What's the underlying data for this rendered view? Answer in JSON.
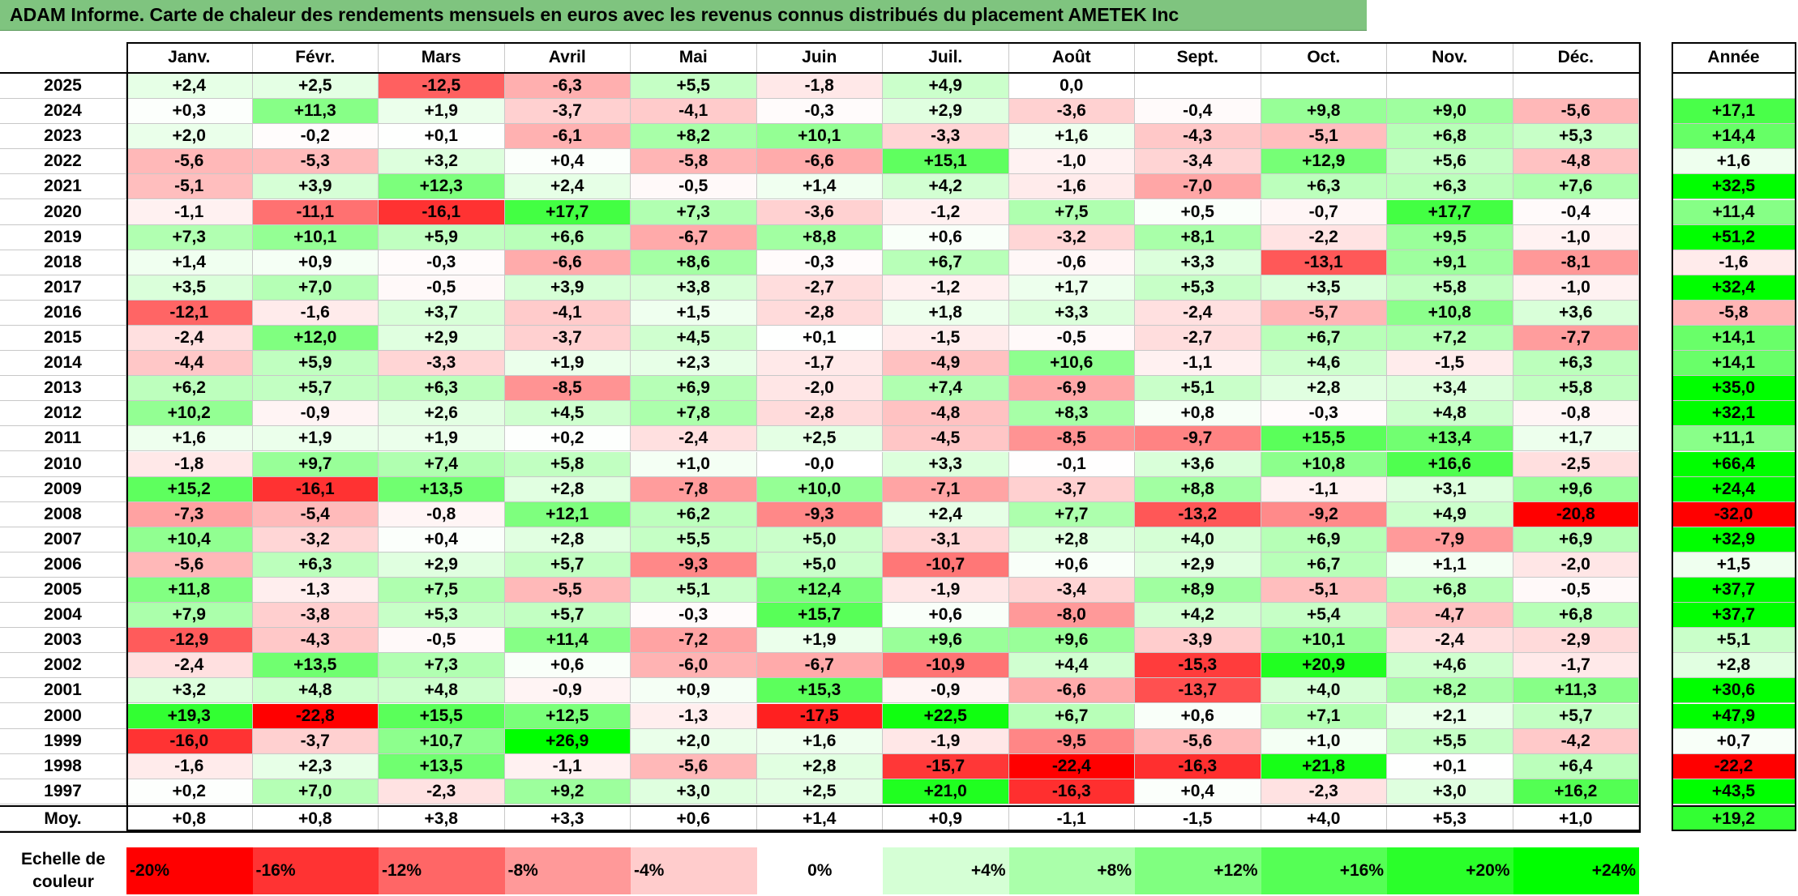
{
  "title": "ADAM Informe. Carte de chaleur des rendements mensuels en euros avec les revenus connus distribués du placement AMETEK Inc",
  "months": [
    "Janv.",
    "Févr.",
    "Mars",
    "Avril",
    "Mai",
    "Juin",
    "Juil.",
    "Août",
    "Sept.",
    "Oct.",
    "Nov.",
    "Déc."
  ],
  "annual_header": "Année",
  "avg_label": "Moy.",
  "scale_label": "Echelle de couleur",
  "scale": [
    "-20%",
    "-16%",
    "-12%",
    "-8%",
    "-4%",
    "0%",
    "+4%",
    "+8%",
    "+12%",
    "+16%",
    "+20%",
    "+24%"
  ],
  "colors": {
    "strong_negative": "#ff0000",
    "neutral": "#ffffff",
    "strong_positive": "#00ff00",
    "title_bar": "#7fc47f"
  },
  "chart_data": {
    "type": "heatmap",
    "title": "ADAM Informe. Carte de chaleur des rendements mensuels en euros avec les revenus connus distribués du placement AMETEK Inc",
    "x": [
      "Janv.",
      "Févr.",
      "Mars",
      "Avril",
      "Mai",
      "Juin",
      "Juil.",
      "Août",
      "Sept.",
      "Oct.",
      "Nov.",
      "Déc."
    ],
    "rows": [
      {
        "year": "2025",
        "values": [
          "+2,4",
          "+2,5",
          "-12,5",
          "-6,3",
          "+5,5",
          "-1,8",
          "+4,9",
          "0,0",
          "",
          "",
          "",
          ""
        ],
        "annual": ""
      },
      {
        "year": "2024",
        "values": [
          "+0,3",
          "+11,3",
          "+1,9",
          "-3,7",
          "-4,1",
          "-0,3",
          "+2,9",
          "-3,6",
          "-0,4",
          "+9,8",
          "+9,0",
          "-5,6"
        ],
        "annual": "+17,1"
      },
      {
        "year": "2023",
        "values": [
          "+2,0",
          "-0,2",
          "+0,1",
          "-6,1",
          "+8,2",
          "+10,1",
          "-3,3",
          "+1,6",
          "-4,3",
          "-5,1",
          "+6,8",
          "+5,3"
        ],
        "annual": "+14,4"
      },
      {
        "year": "2022",
        "values": [
          "-5,6",
          "-5,3",
          "+3,2",
          "+0,4",
          "-5,8",
          "-6,6",
          "+15,1",
          "-1,0",
          "-3,4",
          "+12,9",
          "+5,6",
          "-4,8"
        ],
        "annual": "+1,6"
      },
      {
        "year": "2021",
        "values": [
          "-5,1",
          "+3,9",
          "+12,3",
          "+2,4",
          "-0,5",
          "+1,4",
          "+4,2",
          "-1,6",
          "-7,0",
          "+6,3",
          "+6,3",
          "+7,6"
        ],
        "annual": "+32,5"
      },
      {
        "year": "2020",
        "values": [
          "-1,1",
          "-11,1",
          "-16,1",
          "+17,7",
          "+7,3",
          "-3,6",
          "-1,2",
          "+7,5",
          "+0,5",
          "-0,7",
          "+17,7",
          "-0,4"
        ],
        "annual": "+11,4"
      },
      {
        "year": "2019",
        "values": [
          "+7,3",
          "+10,1",
          "+5,9",
          "+6,6",
          "-6,7",
          "+8,8",
          "+0,6",
          "-3,2",
          "+8,1",
          "-2,2",
          "+9,5",
          "-1,0"
        ],
        "annual": "+51,2"
      },
      {
        "year": "2018",
        "values": [
          "+1,4",
          "+0,9",
          "-0,3",
          "-6,6",
          "+8,6",
          "-0,3",
          "+6,7",
          "-0,6",
          "+3,3",
          "-13,1",
          "+9,1",
          "-8,1"
        ],
        "annual": "-1,6"
      },
      {
        "year": "2017",
        "values": [
          "+3,5",
          "+7,0",
          "-0,5",
          "+3,9",
          "+3,8",
          "-2,7",
          "-1,2",
          "+1,7",
          "+5,3",
          "+3,5",
          "+5,8",
          "-1,0"
        ],
        "annual": "+32,4"
      },
      {
        "year": "2016",
        "values": [
          "-12,1",
          "-1,6",
          "+3,7",
          "-4,1",
          "+1,5",
          "-2,8",
          "+1,8",
          "+3,3",
          "-2,4",
          "-5,7",
          "+10,8",
          "+3,6"
        ],
        "annual": "-5,8"
      },
      {
        "year": "2015",
        "values": [
          "-2,4",
          "+12,0",
          "+2,9",
          "-3,7",
          "+4,5",
          "+0,1",
          "-1,5",
          "-0,5",
          "-2,7",
          "+6,7",
          "+7,2",
          "-7,7"
        ],
        "annual": "+14,1"
      },
      {
        "year": "2014",
        "values": [
          "-4,4",
          "+5,9",
          "-3,3",
          "+1,9",
          "+2,3",
          "-1,7",
          "-4,9",
          "+10,6",
          "-1,1",
          "+4,6",
          "-1,5",
          "+6,3"
        ],
        "annual": "+14,1"
      },
      {
        "year": "2013",
        "values": [
          "+6,2",
          "+5,7",
          "+6,3",
          "-8,5",
          "+6,9",
          "-2,0",
          "+7,4",
          "-6,9",
          "+5,1",
          "+2,8",
          "+3,4",
          "+5,8"
        ],
        "annual": "+35,0"
      },
      {
        "year": "2012",
        "values": [
          "+10,2",
          "-0,9",
          "+2,6",
          "+4,5",
          "+7,8",
          "-2,8",
          "-4,8",
          "+8,3",
          "+0,8",
          "-0,3",
          "+4,8",
          "-0,8"
        ],
        "annual": "+32,1"
      },
      {
        "year": "2011",
        "values": [
          "+1,6",
          "+1,9",
          "+1,9",
          "+0,2",
          "-2,4",
          "+2,5",
          "-4,5",
          "-8,5",
          "-9,7",
          "+15,5",
          "+13,4",
          "+1,7"
        ],
        "annual": "+11,1"
      },
      {
        "year": "2010",
        "values": [
          "-1,8",
          "+9,7",
          "+7,4",
          "+5,8",
          "+1,0",
          "-0,0",
          "+3,3",
          "-0,1",
          "+3,6",
          "+10,8",
          "+16,6",
          "-2,5"
        ],
        "annual": "+66,4"
      },
      {
        "year": "2009",
        "values": [
          "+15,2",
          "-16,1",
          "+13,5",
          "+2,8",
          "-7,8",
          "+10,0",
          "-7,1",
          "-3,7",
          "+8,8",
          "-1,1",
          "+3,1",
          "+9,6"
        ],
        "annual": "+24,4"
      },
      {
        "year": "2008",
        "values": [
          "-7,3",
          "-5,4",
          "-0,8",
          "+12,1",
          "+6,2",
          "-9,3",
          "+2,4",
          "+7,7",
          "-13,2",
          "-9,2",
          "+4,9",
          "-20,8"
        ],
        "annual": "-32,0"
      },
      {
        "year": "2007",
        "values": [
          "+10,4",
          "-3,2",
          "+0,4",
          "+2,8",
          "+5,5",
          "+5,0",
          "-3,1",
          "+2,8",
          "+4,0",
          "+6,9",
          "-7,9",
          "+6,9"
        ],
        "annual": "+32,9"
      },
      {
        "year": "2006",
        "values": [
          "-5,6",
          "+6,3",
          "+2,9",
          "+5,7",
          "-9,3",
          "+5,0",
          "-10,7",
          "+0,6",
          "+2,9",
          "+6,7",
          "+1,1",
          "-2,0"
        ],
        "annual": "+1,5"
      },
      {
        "year": "2005",
        "values": [
          "+11,8",
          "-1,3",
          "+7,5",
          "-5,5",
          "+5,1",
          "+12,4",
          "-1,9",
          "-3,4",
          "+8,9",
          "-5,1",
          "+6,8",
          "-0,5"
        ],
        "annual": "+37,7"
      },
      {
        "year": "2004",
        "values": [
          "+7,9",
          "-3,8",
          "+5,3",
          "+5,7",
          "-0,3",
          "+15,7",
          "+0,6",
          "-8,0",
          "+4,2",
          "+5,4",
          "-4,7",
          "+6,8"
        ],
        "annual": "+37,7"
      },
      {
        "year": "2003",
        "values": [
          "-12,9",
          "-4,3",
          "-0,5",
          "+11,4",
          "-7,2",
          "+1,9",
          "+9,6",
          "+9,6",
          "-3,9",
          "+10,1",
          "-2,4",
          "-2,9"
        ],
        "annual": "+5,1"
      },
      {
        "year": "2002",
        "values": [
          "-2,4",
          "+13,5",
          "+7,3",
          "+0,6",
          "-6,0",
          "-6,7",
          "-10,9",
          "+4,4",
          "-15,3",
          "+20,9",
          "+4,6",
          "-1,7"
        ],
        "annual": "+2,8"
      },
      {
        "year": "2001",
        "values": [
          "+3,2",
          "+4,8",
          "+4,8",
          "-0,9",
          "+0,9",
          "+15,3",
          "-0,9",
          "-6,6",
          "-13,7",
          "+4,0",
          "+8,2",
          "+11,3"
        ],
        "annual": "+30,6"
      },
      {
        "year": "2000",
        "values": [
          "+19,3",
          "-22,8",
          "+15,5",
          "+12,5",
          "-1,3",
          "-17,5",
          "+22,5",
          "+6,7",
          "+0,6",
          "+7,1",
          "+2,1",
          "+5,7"
        ],
        "annual": "+47,9"
      },
      {
        "year": "1999",
        "values": [
          "-16,0",
          "-3,7",
          "+10,7",
          "+26,9",
          "+2,0",
          "+1,6",
          "-1,9",
          "-9,5",
          "-5,6",
          "+1,0",
          "+5,5",
          "-4,2"
        ],
        "annual": "+0,7"
      },
      {
        "year": "1998",
        "values": [
          "-1,6",
          "+2,3",
          "+13,5",
          "-1,1",
          "-5,6",
          "+2,8",
          "-15,7",
          "-22,4",
          "-16,3",
          "+21,8",
          "+0,1",
          "+6,4"
        ],
        "annual": "-22,2"
      },
      {
        "year": "1997",
        "values": [
          "+0,2",
          "+7,0",
          "-2,3",
          "+9,2",
          "+3,0",
          "+2,5",
          "+21,0",
          "-16,3",
          "+0,4",
          "-2,3",
          "+3,0",
          "+16,2"
        ],
        "annual": "+43,5"
      }
    ],
    "average": {
      "values": [
        "+0,8",
        "+0,8",
        "+3,8",
        "+3,3",
        "+0,6",
        "+1,4",
        "+0,9",
        "-1,1",
        "-1,5",
        "+4,0",
        "+5,3",
        "+1,0"
      ],
      "annual": "+19,2"
    },
    "scale_min": -20,
    "scale_max": 24
  }
}
